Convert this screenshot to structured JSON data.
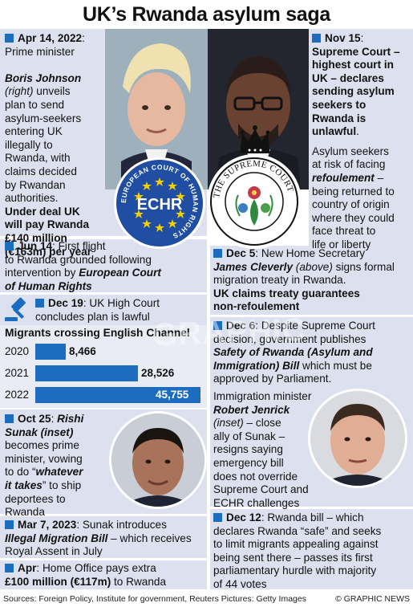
{
  "title": "UK’s Rwanda asylum saga",
  "left": {
    "apr14": {
      "date": "Apr 14, 2022",
      "l1": ": Prime minister",
      "l2": "Boris Johnson",
      "l3": "(right)",
      "l3b": " unveils",
      "l4": "plan to send",
      "l5": "asylum-seekers",
      "l6": "entering UK",
      "l7": "illegally to",
      "l8": "Rwanda, with",
      "l9": "claims decided",
      "l10": "by Rwandan",
      "l11": "authorities.",
      "l12": "Under deal UK",
      "l13": "will pay Rwanda",
      "l14": "£140 million",
      "l15": "(€163m) per year"
    },
    "jun14": {
      "date": "Jun 14",
      "l1": ": First flight",
      "l2": "to Rwanda grounded following",
      "l3a": "intervention by ",
      "l3b": "European Court",
      "l4": "of Human Rights"
    },
    "dec19": {
      "date": "Dec 19",
      "l1": ": UK High Court",
      "l2": "concludes plan is lawful"
    },
    "oct25": {
      "date": "Oct 25",
      "l1a": ": ",
      "l1b": "Rishi",
      "l2": "Sunak (inset)",
      "l3": "becomes prime",
      "l4": "minister, vowing",
      "l5a": "to do “",
      "l5b": "whatever",
      "l6a": "it takes",
      "l6b": "” to ship",
      "l7": "deportees to",
      "l8": "Rwanda"
    },
    "mar7": {
      "date": "Mar 7, 2023",
      "l1": ": Sunak introduces",
      "l2a": "Illegal Migration Bill",
      "l2b": " – which receives",
      "l3": "Royal Assent in July"
    },
    "apr": {
      "date": "Apr",
      "l1": ": Home Office pays extra",
      "l2a": "£100 million (€117m)",
      "l2b": " to Rwanda"
    }
  },
  "right": {
    "nov15": {
      "date": "Nov 15",
      "l1": ":",
      "l2": "Supreme Court –",
      "l3": "highest court in",
      "l4": "UK – declares",
      "l5": "sending asylum",
      "l6": "seekers to",
      "l7": "Rwanda is",
      "l8": "unlawful",
      "l8b": ".",
      "p1": "Asylum seekers",
      "p2": "at risk of facing",
      "p3a": "refoulement",
      "p3b": " –",
      "p4": "being returned to",
      "p5": "country of origin",
      "p6": "where they could",
      "p7": "face threat to",
      "p8": "life or liberty"
    },
    "dec5": {
      "date": "Dec 5",
      "l1": ": New Home Secretary",
      "l2a": "James Cleverly",
      "l2b": " (above)",
      "l2c": " signs formal",
      "l3": "migration treaty in Rwanda.",
      "l4": "UK claims treaty guarantees",
      "l5": "non-refoulement"
    },
    "dec6": {
      "date": "Dec 6",
      "l1": ": Despite Supreme Court",
      "l2": "decision, government publishes",
      "l3": "Safety of Rwanda (Asylum and",
      "l4": "Immigration) Bill",
      "l4b": " which must be",
      "l5": "approved by Parliament.",
      "p1": "Immigration minister",
      "p2": "Robert Jenrick",
      "p3": "(inset)",
      "p3b": " – close",
      "p4": "ally of Sunak –",
      "p5": "resigns saying",
      "p6": "emergency bill",
      "p7": "does not override",
      "p8": "Supreme Court and",
      "p9": "ECHR challenges"
    },
    "dec12": {
      "date": "Dec 12",
      "l1": ": Rwanda bill – which",
      "l2": "declares Rwanda “safe” and seeks",
      "l3": "to limit migrants appealing against",
      "l4": "being sent there – passes its first",
      "l5": "parliamentary hurdle with majority",
      "l6": "of 44 votes"
    }
  },
  "logos": {
    "echr_center": "ECHR",
    "echr_ring": "EUROPEAN COURT OF HUMAN RIGHTS",
    "supreme_ring": "THE SUPREME COURT"
  },
  "watermark": "GRAPHIC",
  "chart_data": {
    "type": "bar",
    "title": "Migrants crossing English Channel",
    "categories": [
      "2020",
      "2021",
      "2022"
    ],
    "values": [
      8466,
      28526,
      45755
    ],
    "labels": [
      "8,466",
      "28,526",
      "45,755"
    ],
    "xlim": [
      0,
      45755
    ]
  },
  "footer": {
    "sources": "Sources: Foreign Policy, Institute for government, Reuters   Pictures: Getty Images",
    "credit": "© GRAPHIC NEWS"
  },
  "colors": {
    "accent": "#1c6cc0",
    "panel": "#dde1ef",
    "echr_blue": "#1f4ea3",
    "star": "#f5d000"
  }
}
